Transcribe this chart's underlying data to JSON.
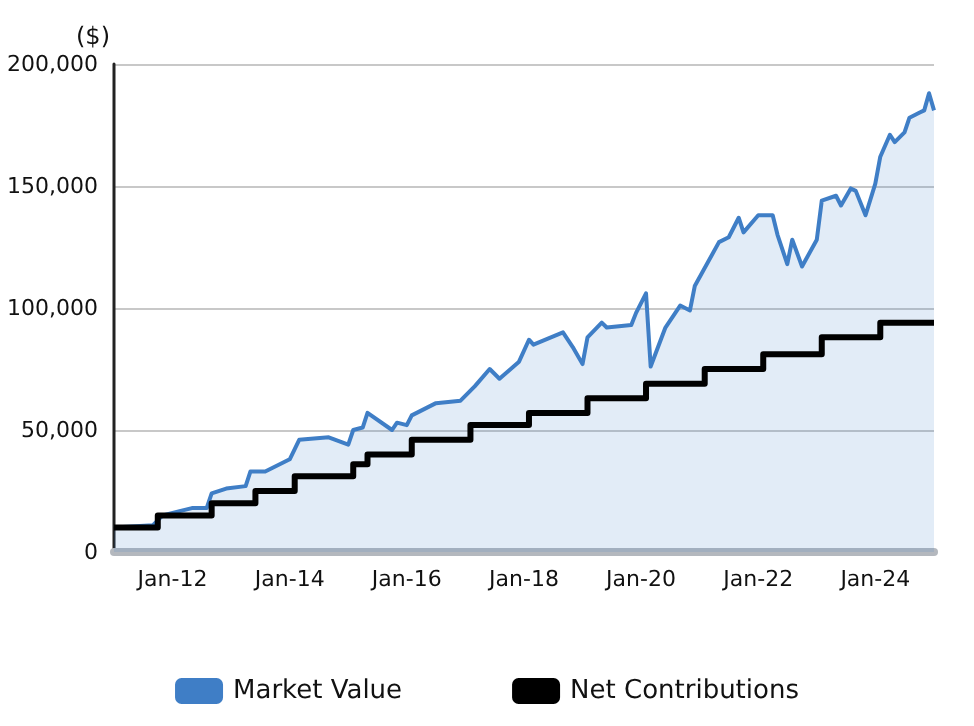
{
  "chart_data": {
    "type": "area",
    "ylabel": "($)",
    "xlim": [
      "2011-01",
      "2025-01"
    ],
    "xticks": [
      {
        "value": "2012-01",
        "label": "Jan-12"
      },
      {
        "value": "2014-01",
        "label": "Jan-14"
      },
      {
        "value": "2016-01",
        "label": "Jan-16"
      },
      {
        "value": "2018-01",
        "label": "Jan-18"
      },
      {
        "value": "2020-01",
        "label": "Jan-20"
      },
      {
        "value": "2022-01",
        "label": "Jan-22"
      },
      {
        "value": "2024-01",
        "label": "Jan-24"
      }
    ],
    "ylim": [
      0,
      200000
    ],
    "yticks": [
      0,
      {
        "value": 50000,
        "label": "50,000"
      },
      {
        "value": 100000,
        "label": "100,000"
      },
      {
        "value": 150000,
        "label": "150,000"
      },
      {
        "value": 200000,
        "label": "200,000"
      }
    ],
    "grid": "y",
    "legend": "bottom",
    "marker": "none",
    "series": [
      {
        "name": "Market Value",
        "color": "#3f7ec6",
        "x": [
          "2011-01",
          "2011-09",
          "2011-11",
          "2012-05",
          "2012-08",
          "2012-09",
          "2012-12",
          "2013-04",
          "2013-05",
          "2013-08",
          "2014-01",
          "2014-03",
          "2014-09",
          "2015-01",
          "2015-02",
          "2015-04",
          "2015-05",
          "2015-10",
          "2015-11",
          "2016-01",
          "2016-02",
          "2016-07",
          "2016-12",
          "2017-03",
          "2017-06",
          "2017-08",
          "2017-12",
          "2018-02",
          "2018-03",
          "2018-09",
          "2018-11",
          "2019-01",
          "2019-02",
          "2019-05",
          "2019-06",
          "2019-11",
          "2019-12",
          "2020-02",
          "2020-03",
          "2020-06",
          "2020-09",
          "2020-11",
          "2020-12",
          "2021-05",
          "2021-07",
          "2021-09",
          "2021-10",
          "2022-01",
          "2022-04",
          "2022-05",
          "2022-07",
          "2022-08",
          "2022-10",
          "2023-01",
          "2023-02",
          "2023-05",
          "2023-06",
          "2023-08",
          "2023-09",
          "2023-11",
          "2024-01",
          "2024-02",
          "2024-04",
          "2024-05",
          "2024-07",
          "2024-08",
          "2024-10",
          "2024-11",
          "2024-12",
          "2025-01"
        ],
        "values": [
          10000,
          11000,
          15000,
          18000,
          18000,
          24000,
          26000,
          27000,
          33000,
          33000,
          38000,
          46000,
          47000,
          44000,
          50000,
          51000,
          57000,
          50000,
          53000,
          52000,
          56000,
          61000,
          62000,
          68000,
          75000,
          71000,
          78000,
          87000,
          85000,
          90000,
          84000,
          77000,
          88000,
          94000,
          92000,
          93000,
          98000,
          106000,
          76000,
          92000,
          101000,
          99000,
          109000,
          127000,
          129000,
          137000,
          131000,
          138000,
          138000,
          130000,
          118000,
          128000,
          117000,
          128000,
          144000,
          146000,
          142000,
          149000,
          148000,
          138000,
          151000,
          162000,
          171000,
          168000,
          172000,
          178000,
          180000,
          181000,
          188000,
          181000
        ]
      },
      {
        "name": "Net Contributions",
        "type": "step",
        "color": "#000000",
        "x": [
          "2011-01",
          "2011-10",
          "2012-09",
          "2013-06",
          "2014-02",
          "2015-02",
          "2015-05",
          "2016-02",
          "2017-02",
          "2018-02",
          "2019-02",
          "2020-02",
          "2021-02",
          "2022-02",
          "2023-02",
          "2024-02",
          "2025-01"
        ],
        "values": [
          10000,
          15000,
          20000,
          25000,
          31000,
          36000,
          40000,
          46000,
          52000,
          57000,
          63000,
          69000,
          75000,
          81000,
          88000,
          94000,
          94000
        ]
      }
    ]
  }
}
